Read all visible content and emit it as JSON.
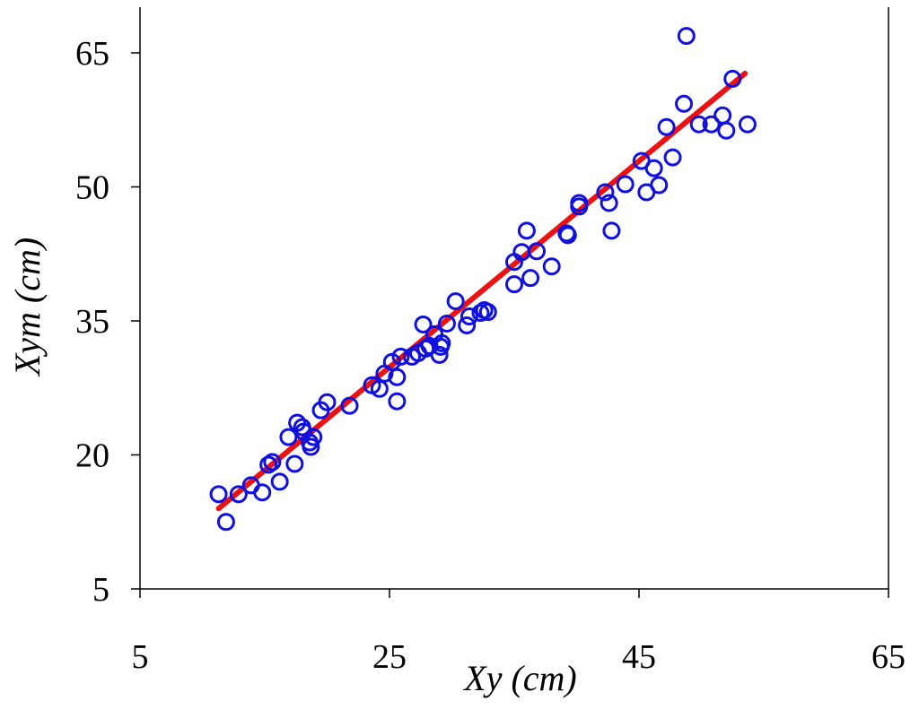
{
  "chart_data": {
    "type": "scatter",
    "title": "",
    "xlabel": "Xy (cm)",
    "ylabel": "Xym (cm)",
    "xlim": [
      5,
      65
    ],
    "ylim": [
      5,
      70
    ],
    "xticks": [
      5,
      25,
      45,
      65
    ],
    "yticks": [
      5,
      20,
      35,
      50,
      65
    ],
    "xtick_labels": [
      "5",
      "25",
      "45",
      "65"
    ],
    "ytick_labels": [
      "5",
      "20",
      "35",
      "50",
      "65"
    ],
    "grid": false,
    "legend": "none",
    "colors": {
      "points": "#1010e0",
      "fit_line": "#ee1111",
      "axes": "#000000"
    },
    "series": [
      {
        "kind": "points",
        "x": [
          11.3,
          11.9,
          12.9,
          13.9,
          14.8,
          15.3,
          15.6,
          16.2,
          16.9,
          17.4,
          17.6,
          18.0,
          18.1,
          18.6,
          18.7,
          18.9,
          19.5,
          20.0,
          21.8,
          23.6,
          24.2,
          24.6,
          25.2,
          25.6,
          25.6,
          25.9,
          26.8,
          27.3,
          27.7,
          27.9,
          28.2,
          28.6,
          29.0,
          29.1,
          29.2,
          29.6,
          30.3,
          31.2,
          31.4,
          32.3,
          32.6,
          32.9,
          35.0,
          35.0,
          35.6,
          36.0,
          36.3,
          36.8,
          38.0,
          39.2,
          39.3,
          40.2,
          40.2,
          42.3,
          42.6,
          42.8,
          43.9,
          45.2,
          45.6,
          46.2,
          46.6,
          47.2,
          47.7,
          48.6,
          48.8,
          49.8,
          50.8,
          51.7,
          52.0,
          52.5,
          53.7
        ],
        "y": [
          15.6,
          12.5,
          15.6,
          16.6,
          15.8,
          18.9,
          19.2,
          17.0,
          22.0,
          19.0,
          23.6,
          23.1,
          22.6,
          21.4,
          20.9,
          22.0,
          25.0,
          25.9,
          25.5,
          27.8,
          27.4,
          29.1,
          30.4,
          26.0,
          28.7,
          31.0,
          31.0,
          31.4,
          34.6,
          31.9,
          32.2,
          33.5,
          31.2,
          32.1,
          32.5,
          34.7,
          37.2,
          34.5,
          35.5,
          35.9,
          36.2,
          36.0,
          39.1,
          41.6,
          42.7,
          45.1,
          39.8,
          42.8,
          41.1,
          44.8,
          44.6,
          48.2,
          47.8,
          49.4,
          48.2,
          45.1,
          50.3,
          52.9,
          49.4,
          52.1,
          50.2,
          56.7,
          53.3,
          59.3,
          66.9,
          57.0,
          57.0,
          58.0,
          56.3,
          62.1,
          57.0
        ]
      },
      {
        "kind": "regression-line",
        "x": [
          11.3,
          53.5
        ],
        "y": [
          14.0,
          62.7
        ]
      }
    ]
  }
}
